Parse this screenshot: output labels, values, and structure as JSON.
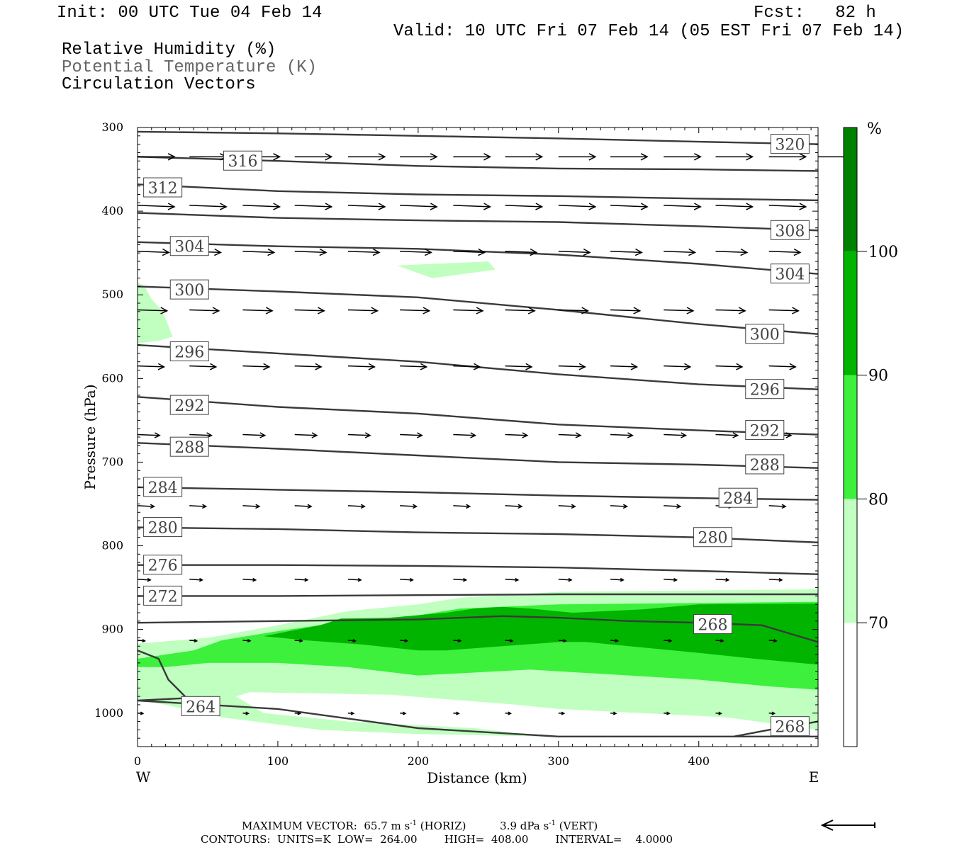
{
  "header": {
    "init": "Init: 00 UTC Tue 04 Feb 14",
    "fcst": "Fcst:   82 h",
    "valid": "Valid: 10 UTC Fri 07 Feb 14 (05 EST Fri 07 Feb 14)",
    "field1": "Relative Humidity (%)",
    "field2": "Potential Temperature (K)",
    "field3": "Circulation Vectors"
  },
  "footer": {
    "line1": "MAXIMUM VECTOR:  65.7 m s",
    "line1_sup": "-1",
    "line1_b": " (HORIZ)          3.9 dPa s",
    "line1_sup2": "-1",
    "line1_c": " (VERT)",
    "line2": "CONTOURS:  UNITS=K  LOW=  264.00        HIGH=  408.00        INTERVAL=    4.0000"
  },
  "colors": {
    "rh70": "#c0ffc0",
    "rh80": "#3cf03c",
    "rh90": "#00b400",
    "rh100": "#008200",
    "contour": "#3a3a3a",
    "vector": "#000000"
  },
  "chart_data": {
    "type": "cross-section",
    "xlabel": "Distance (km)",
    "ylabel": "Pressure (hPa)",
    "xlim": [
      0,
      485
    ],
    "ylim": [
      1040,
      300
    ],
    "x_ticks": [
      "0",
      "100",
      "200",
      "300",
      "400"
    ],
    "y_ticks": [
      "300",
      "400",
      "500",
      "600",
      "700",
      "800",
      "900",
      "1000"
    ],
    "x_end_labels": [
      "W",
      "E"
    ],
    "colorbar": {
      "unit": "%",
      "levels": [
        "70",
        "80",
        "90",
        "100"
      ],
      "colors": [
        "#ffffff",
        "#c0ffc0",
        "#3cf03c",
        "#00b400",
        "#008200"
      ]
    },
    "theta_contours": [
      {
        "value": 320,
        "points": [
          [
            0,
            305
          ],
          [
            100,
            307
          ],
          [
            200,
            310
          ],
          [
            300,
            313
          ],
          [
            400,
            317
          ],
          [
            485,
            320
          ]
        ],
        "labels": [
          [
            465,
            320
          ]
        ]
      },
      {
        "value": 316,
        "points": [
          [
            0,
            335
          ],
          [
            100,
            340
          ],
          [
            200,
            346
          ],
          [
            300,
            349
          ],
          [
            400,
            350
          ],
          [
            485,
            352
          ]
        ],
        "labels": [
          [
            75,
            340
          ]
        ]
      },
      {
        "value": 312,
        "points": [
          [
            0,
            368
          ],
          [
            100,
            376
          ],
          [
            200,
            380
          ],
          [
            300,
            382
          ],
          [
            400,
            385
          ],
          [
            485,
            387
          ]
        ],
        "labels": [
          [
            18,
            372
          ]
        ]
      },
      {
        "value": 308,
        "points": [
          [
            0,
            402
          ],
          [
            100,
            408
          ],
          [
            200,
            411
          ],
          [
            300,
            413
          ],
          [
            400,
            418
          ],
          [
            485,
            423
          ]
        ],
        "labels": [
          [
            465,
            423
          ]
        ]
      },
      {
        "value": 304,
        "points": [
          [
            0,
            437
          ],
          [
            100,
            442
          ],
          [
            200,
            445
          ],
          [
            300,
            452
          ],
          [
            400,
            463
          ],
          [
            485,
            475
          ]
        ],
        "labels": [
          [
            37,
            442
          ],
          [
            465,
            475
          ]
        ]
      },
      {
        "value": 300,
        "points": [
          [
            0,
            490
          ],
          [
            100,
            496
          ],
          [
            200,
            503
          ],
          [
            300,
            518
          ],
          [
            400,
            535
          ],
          [
            485,
            547
          ]
        ],
        "labels": [
          [
            37,
            494
          ],
          [
            447,
            547
          ]
        ]
      },
      {
        "value": 296,
        "points": [
          [
            0,
            560
          ],
          [
            100,
            570
          ],
          [
            200,
            580
          ],
          [
            300,
            595
          ],
          [
            400,
            607
          ],
          [
            485,
            613
          ]
        ],
        "labels": [
          [
            37,
            568
          ],
          [
            447,
            613
          ]
        ]
      },
      {
        "value": 292,
        "points": [
          [
            0,
            622
          ],
          [
            100,
            634
          ],
          [
            200,
            642
          ],
          [
            300,
            655
          ],
          [
            400,
            662
          ],
          [
            485,
            667
          ]
        ],
        "labels": [
          [
            37,
            632
          ],
          [
            447,
            662
          ]
        ]
      },
      {
        "value": 288,
        "points": [
          [
            0,
            677
          ],
          [
            100,
            684
          ],
          [
            200,
            692
          ],
          [
            300,
            700
          ],
          [
            400,
            703
          ],
          [
            485,
            707
          ]
        ],
        "labels": [
          [
            37,
            682
          ],
          [
            447,
            703
          ]
        ]
      },
      {
        "value": 284,
        "points": [
          [
            0,
            730
          ],
          [
            100,
            733
          ],
          [
            200,
            736
          ],
          [
            300,
            740
          ],
          [
            400,
            743
          ],
          [
            485,
            745
          ]
        ],
        "labels": [
          [
            18,
            730
          ],
          [
            428,
            743
          ]
        ]
      },
      {
        "value": 280,
        "points": [
          [
            0,
            778
          ],
          [
            100,
            780
          ],
          [
            200,
            784
          ],
          [
            300,
            786
          ],
          [
            400,
            790
          ],
          [
            485,
            796
          ]
        ],
        "labels": [
          [
            18,
            778
          ],
          [
            410,
            790
          ]
        ]
      },
      {
        "value": 276,
        "points": [
          [
            0,
            823
          ],
          [
            100,
            823
          ],
          [
            200,
            824
          ],
          [
            300,
            826
          ],
          [
            400,
            830
          ],
          [
            485,
            834
          ]
        ],
        "labels": [
          [
            18,
            823
          ]
        ]
      },
      {
        "value": 272,
        "points": [
          [
            0,
            860
          ],
          [
            100,
            860
          ],
          [
            200,
            859
          ],
          [
            300,
            858
          ],
          [
            400,
            858
          ],
          [
            485,
            858
          ]
        ],
        "labels": [
          [
            18,
            860
          ]
        ]
      },
      {
        "value": 268,
        "points": [
          [
            0,
            892
          ],
          [
            100,
            890
          ],
          [
            200,
            888
          ],
          [
            260,
            884
          ],
          [
            300,
            886
          ],
          [
            350,
            890
          ],
          [
            400,
            892
          ],
          [
            445,
            895
          ],
          [
            485,
            915
          ]
        ],
        "labels": [
          [
            410,
            894
          ]
        ]
      },
      {
        "value": 264,
        "points": [
          [
            0,
            925
          ],
          [
            15,
            935
          ],
          [
            22,
            960
          ],
          [
            35,
            982
          ],
          [
            0,
            985
          ],
          [
            100,
            995
          ],
          [
            200,
            1018
          ],
          [
            300,
            1028
          ],
          [
            485,
            1028
          ]
        ],
        "labels": [
          [
            45,
            992
          ]
        ]
      },
      {
        "value": 268,
        "points": [
          [
            425,
            1028
          ],
          [
            450,
            1020
          ],
          [
            485,
            1010
          ]
        ],
        "labels": [
          [
            465,
            1016
          ]
        ]
      }
    ],
    "rh_regions": [
      {
        "level": 70,
        "points": [
          [
            0,
            485
          ],
          [
            5,
            490
          ],
          [
            10,
            505
          ],
          [
            18,
            520
          ],
          [
            25,
            550
          ],
          [
            15,
            555
          ],
          [
            0,
            558
          ]
        ]
      },
      {
        "level": 70,
        "points": [
          [
            185,
            465
          ],
          [
            250,
            460
          ],
          [
            255,
            470
          ],
          [
            210,
            480
          ]
        ]
      },
      {
        "level": 70,
        "points": [
          [
            0,
            917
          ],
          [
            50,
            910
          ],
          [
            100,
            895
          ],
          [
            150,
            878
          ],
          [
            200,
            870
          ],
          [
            230,
            862
          ],
          [
            300,
            855
          ],
          [
            485,
            852
          ],
          [
            485,
            1020
          ],
          [
            420,
            1005
          ],
          [
            300,
            995
          ],
          [
            270,
            990
          ],
          [
            180,
            978
          ],
          [
            80,
            975
          ],
          [
            70,
            980
          ],
          [
            80,
            990
          ],
          [
            90,
            1000
          ],
          [
            150,
            1010
          ],
          [
            240,
            1018
          ],
          [
            290,
            1028
          ],
          [
            200,
            1025
          ],
          [
            130,
            1020
          ],
          [
            60,
            1005
          ],
          [
            20,
            990
          ],
          [
            0,
            985
          ]
        ]
      },
      {
        "level": 80,
        "points": [
          [
            0,
            935
          ],
          [
            40,
            925
          ],
          [
            60,
            913
          ],
          [
            100,
            902
          ],
          [
            150,
            890
          ],
          [
            200,
            883
          ],
          [
            230,
            875
          ],
          [
            300,
            870
          ],
          [
            485,
            867
          ],
          [
            485,
            972
          ],
          [
            450,
            968
          ],
          [
            400,
            960
          ],
          [
            300,
            950
          ],
          [
            280,
            948
          ],
          [
            200,
            955
          ],
          [
            150,
            945
          ],
          [
            100,
            940
          ],
          [
            50,
            940
          ],
          [
            20,
            945
          ],
          [
            0,
            945
          ]
        ]
      },
      {
        "level": 90,
        "points": [
          [
            90,
            908
          ],
          [
            130,
            895
          ],
          [
            145,
            887
          ],
          [
            180,
            886
          ],
          [
            220,
            880
          ],
          [
            240,
            875
          ],
          [
            260,
            873
          ],
          [
            280,
            875
          ],
          [
            310,
            880
          ],
          [
            360,
            876
          ],
          [
            400,
            870
          ],
          [
            485,
            869
          ],
          [
            485,
            942
          ],
          [
            440,
            935
          ],
          [
            400,
            928
          ],
          [
            320,
            915
          ],
          [
            300,
            915
          ],
          [
            260,
            920
          ],
          [
            220,
            925
          ],
          [
            200,
            925
          ],
          [
            160,
            918
          ],
          [
            120,
            913
          ]
        ]
      },
      {
        "level": 100,
        "points": []
      }
    ],
    "vectors": [
      {
        "p": 335,
        "x": [
          0,
          37,
          75,
          112,
          150,
          187,
          225,
          262,
          300,
          337,
          375,
          412,
          450,
          485
        ],
        "u": 1.0,
        "w": 0.0
      },
      {
        "p": 393,
        "x": [
          0,
          37,
          75,
          112,
          150,
          187,
          225,
          262,
          300,
          337,
          375,
          412,
          450
        ],
        "u": 1.0,
        "w": 0.08
      },
      {
        "p": 448,
        "x": [
          0,
          37,
          75,
          112,
          150,
          187,
          225,
          262,
          300,
          337,
          375,
          412,
          450
        ],
        "u": 0.85,
        "w": 0.06
      },
      {
        "p": 518,
        "x": [
          0,
          37,
          75,
          112,
          150,
          187,
          225,
          262,
          300,
          337,
          375,
          412,
          450
        ],
        "u": 0.8,
        "w": 0.05
      },
      {
        "p": 585,
        "x": [
          0,
          37,
          75,
          112,
          150,
          187,
          225,
          262,
          300,
          337,
          375,
          412,
          450
        ],
        "u": 0.72,
        "w": 0.05
      },
      {
        "p": 667,
        "x": [
          0,
          37,
          75,
          112,
          150,
          187,
          225,
          262,
          300,
          337,
          375,
          412,
          450
        ],
        "u": 0.6,
        "w": 0.05
      },
      {
        "p": 752,
        "x": [
          0,
          37,
          75,
          112,
          150,
          187,
          225,
          262,
          300,
          337,
          375,
          412,
          450
        ],
        "u": 0.45,
        "w": 0.05
      },
      {
        "p": 840,
        "x": [
          0,
          37,
          75,
          112,
          150,
          187,
          225,
          262,
          300,
          337,
          375,
          412,
          450
        ],
        "u": 0.35,
        "w": 0.04
      },
      {
        "p": 913,
        "x": [
          0,
          37,
          75,
          112,
          150,
          187,
          225,
          262,
          300,
          337,
          375,
          412,
          450
        ],
        "u": 0.2,
        "w": 0.03
      },
      {
        "p": 1000,
        "x": [
          0,
          37,
          75,
          112,
          150,
          187,
          225,
          262,
          300,
          337,
          375,
          412,
          450
        ],
        "u": 0.15,
        "w": 0.02
      }
    ]
  }
}
